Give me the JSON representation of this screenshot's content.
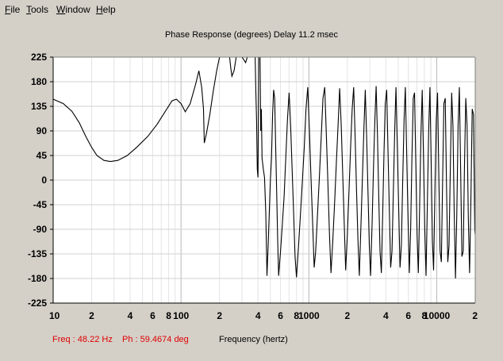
{
  "menu": {
    "items": [
      {
        "label": "File",
        "mnemonic": "F",
        "rest": "ile"
      },
      {
        "label": "Tools",
        "mnemonic": "T",
        "rest": "ools"
      },
      {
        "label": "Window",
        "mnemonic": "W",
        "rest": "indow"
      },
      {
        "label": "Help",
        "mnemonic": "H",
        "rest": "elp"
      }
    ]
  },
  "status": {
    "freq": "Freq : 48.22 Hz",
    "phase": "Ph : 59.4674 deg",
    "freq_color": "#e00000"
  },
  "chart_data": {
    "type": "line",
    "title": "Phase Response (degrees)   Delay 11.2 msec",
    "xlabel": "Frequency (hertz)",
    "ylabel": "",
    "x_scale": "log",
    "xlim": [
      10,
      20000
    ],
    "ylim": [
      -225,
      225
    ],
    "grid": true,
    "y_ticks": [
      "225",
      "180",
      "135",
      "90",
      "45",
      "0",
      "-45",
      "-90",
      "-135",
      "-180",
      "-225"
    ],
    "x_ticks": [
      {
        "value": 10,
        "label": "10"
      },
      {
        "value": 20,
        "label": "2"
      },
      {
        "value": 40,
        "label": "4"
      },
      {
        "value": 60,
        "label": "6"
      },
      {
        "value": 80,
        "label": "8"
      },
      {
        "value": 100,
        "label": "100"
      },
      {
        "value": 200,
        "label": "2"
      },
      {
        "value": 400,
        "label": "4"
      },
      {
        "value": 600,
        "label": "6"
      },
      {
        "value": 800,
        "label": "8"
      },
      {
        "value": 1000,
        "label": "1000"
      },
      {
        "value": 2000,
        "label": "2"
      },
      {
        "value": 4000,
        "label": "4"
      },
      {
        "value": 6000,
        "label": "6"
      },
      {
        "value": 8000,
        "label": "8"
      },
      {
        "value": 10000,
        "label": "10000"
      },
      {
        "value": 20000,
        "label": "2"
      }
    ],
    "series": [
      {
        "color": "#000000",
        "points": [
          [
            10,
            148
          ],
          [
            12,
            140
          ],
          [
            14,
            126
          ],
          [
            16,
            105
          ],
          [
            18,
            80
          ],
          [
            20,
            60
          ],
          [
            22,
            45
          ],
          [
            25,
            36
          ],
          [
            28,
            34
          ],
          [
            32,
            36
          ],
          [
            38,
            45
          ],
          [
            45,
            60
          ],
          [
            55,
            80
          ],
          [
            65,
            102
          ],
          [
            75,
            125
          ],
          [
            85,
            145
          ],
          [
            92,
            148
          ],
          [
            100,
            140
          ],
          [
            108,
            125
          ],
          [
            118,
            140
          ],
          [
            130,
            175
          ],
          [
            138,
            200
          ],
          [
            145,
            170
          ],
          [
            150,
            130
          ],
          [
            152,
            68
          ],
          [
            158,
            85
          ],
          [
            168,
            120
          ],
          [
            178,
            160
          ],
          [
            190,
            200
          ],
          [
            200,
            225
          ],
          [
            240,
            225
          ],
          [
            245,
            205
          ],
          [
            250,
            190
          ],
          [
            260,
            200
          ],
          [
            270,
            225
          ],
          [
            300,
            225
          ],
          [
            320,
            215
          ],
          [
            330,
            225
          ],
          [
            380,
            225
          ],
          [
            385,
            160
          ],
          [
            390,
            110
          ],
          [
            395,
            20
          ],
          [
            400,
            5
          ],
          [
            405,
            225
          ],
          [
            415,
            225
          ],
          [
            420,
            90
          ],
          [
            425,
            130
          ],
          [
            430,
            40
          ],
          [
            440,
            20
          ],
          [
            450,
            5
          ],
          [
            460,
            -60
          ],
          [
            470,
            -175
          ],
          [
            480,
            -120
          ],
          [
            490,
            -60
          ],
          [
            500,
            0
          ],
          [
            510,
            40
          ],
          [
            520,
            120
          ],
          [
            530,
            165
          ],
          [
            540,
            150
          ],
          [
            550,
            60
          ],
          [
            560,
            -20
          ],
          [
            570,
            -110
          ],
          [
            580,
            -175
          ],
          [
            600,
            -130
          ],
          [
            620,
            -80
          ],
          [
            640,
            -30
          ],
          [
            660,
            40
          ],
          [
            680,
            110
          ],
          [
            700,
            160
          ],
          [
            720,
            100
          ],
          [
            740,
            20
          ],
          [
            760,
            -60
          ],
          [
            780,
            -140
          ],
          [
            800,
            -178
          ],
          [
            830,
            -120
          ],
          [
            860,
            -60
          ],
          [
            890,
            0
          ],
          [
            920,
            60
          ],
          [
            950,
            130
          ],
          [
            980,
            170
          ],
          [
            1010,
            90
          ],
          [
            1040,
            0
          ],
          [
            1070,
            -80
          ],
          [
            1100,
            -160
          ],
          [
            1130,
            -130
          ],
          [
            1170,
            -60
          ],
          [
            1210,
            10
          ],
          [
            1250,
            80
          ],
          [
            1290,
            150
          ],
          [
            1330,
            170
          ],
          [
            1370,
            80
          ],
          [
            1410,
            -10
          ],
          [
            1450,
            -100
          ],
          [
            1490,
            -170
          ],
          [
            1540,
            -110
          ],
          [
            1590,
            -40
          ],
          [
            1640,
            30
          ],
          [
            1690,
            100
          ],
          [
            1740,
            168
          ],
          [
            1790,
            100
          ],
          [
            1840,
            10
          ],
          [
            1890,
            -80
          ],
          [
            1940,
            -165
          ],
          [
            2000,
            -100
          ],
          [
            2060,
            -20
          ],
          [
            2120,
            60
          ],
          [
            2180,
            130
          ],
          [
            2240,
            170
          ],
          [
            2300,
            80
          ],
          [
            2360,
            -20
          ],
          [
            2420,
            -110
          ],
          [
            2480,
            -175
          ],
          [
            2550,
            -90
          ],
          [
            2620,
            0
          ],
          [
            2690,
            90
          ],
          [
            2760,
            165
          ],
          [
            2830,
            80
          ],
          [
            2900,
            -20
          ],
          [
            2970,
            -120
          ],
          [
            3040,
            -175
          ],
          [
            3120,
            -80
          ],
          [
            3200,
            20
          ],
          [
            3280,
            110
          ],
          [
            3360,
            172
          ],
          [
            3440,
            80
          ],
          [
            3520,
            -30
          ],
          [
            3600,
            -130
          ],
          [
            3690,
            -170
          ],
          [
            3780,
            -60
          ],
          [
            3870,
            50
          ],
          [
            3960,
            140
          ],
          [
            4060,
            165
          ],
          [
            4160,
            50
          ],
          [
            4260,
            -60
          ],
          [
            4360,
            -160
          ],
          [
            4470,
            -130
          ],
          [
            4580,
            -20
          ],
          [
            4690,
            90
          ],
          [
            4800,
            170
          ],
          [
            4920,
            60
          ],
          [
            5040,
            -50
          ],
          [
            5160,
            -160
          ],
          [
            5290,
            -120
          ],
          [
            5420,
            0
          ],
          [
            5550,
            110
          ],
          [
            5680,
            170
          ],
          [
            5820,
            50
          ],
          [
            5960,
            -70
          ],
          [
            6100,
            -170
          ],
          [
            6250,
            -90
          ],
          [
            6400,
            40
          ],
          [
            6550,
            150
          ],
          [
            6700,
            160
          ],
          [
            6860,
            30
          ],
          [
            7020,
            -100
          ],
          [
            7180,
            -170
          ],
          [
            7350,
            -50
          ],
          [
            7520,
            80
          ],
          [
            7700,
            165
          ],
          [
            7880,
            40
          ],
          [
            8060,
            -90
          ],
          [
            8250,
            -175
          ],
          [
            8450,
            -40
          ],
          [
            8650,
            90
          ],
          [
            8850,
            170
          ],
          [
            9050,
            30
          ],
          [
            9250,
            -110
          ],
          [
            9450,
            -165
          ],
          [
            9680,
            -20
          ],
          [
            9910,
            110
          ],
          [
            10140,
            160
          ],
          [
            10380,
            10
          ],
          [
            10620,
            -130
          ],
          [
            10870,
            -150
          ],
          [
            11120,
            0
          ],
          [
            11380,
            140
          ],
          [
            11650,
            150
          ],
          [
            11920,
            -10
          ],
          [
            12200,
            -150
          ],
          [
            12490,
            -120
          ],
          [
            12780,
            30
          ],
          [
            13080,
            160
          ],
          [
            13390,
            100
          ],
          [
            13700,
            -60
          ],
          [
            14020,
            -180
          ],
          [
            14350,
            -60
          ],
          [
            14690,
            100
          ],
          [
            15030,
            170
          ],
          [
            15380,
            20
          ],
          [
            15740,
            -140
          ],
          [
            16110,
            -130
          ],
          [
            16490,
            30
          ],
          [
            16870,
            150
          ],
          [
            17270,
            100
          ],
          [
            17670,
            -70
          ],
          [
            18080,
            -170
          ],
          [
            18500,
            -40
          ],
          [
            18930,
            130
          ],
          [
            19380,
            120
          ],
          [
            19830,
            -90
          ],
          [
            20000,
            -100
          ]
        ]
      }
    ]
  }
}
